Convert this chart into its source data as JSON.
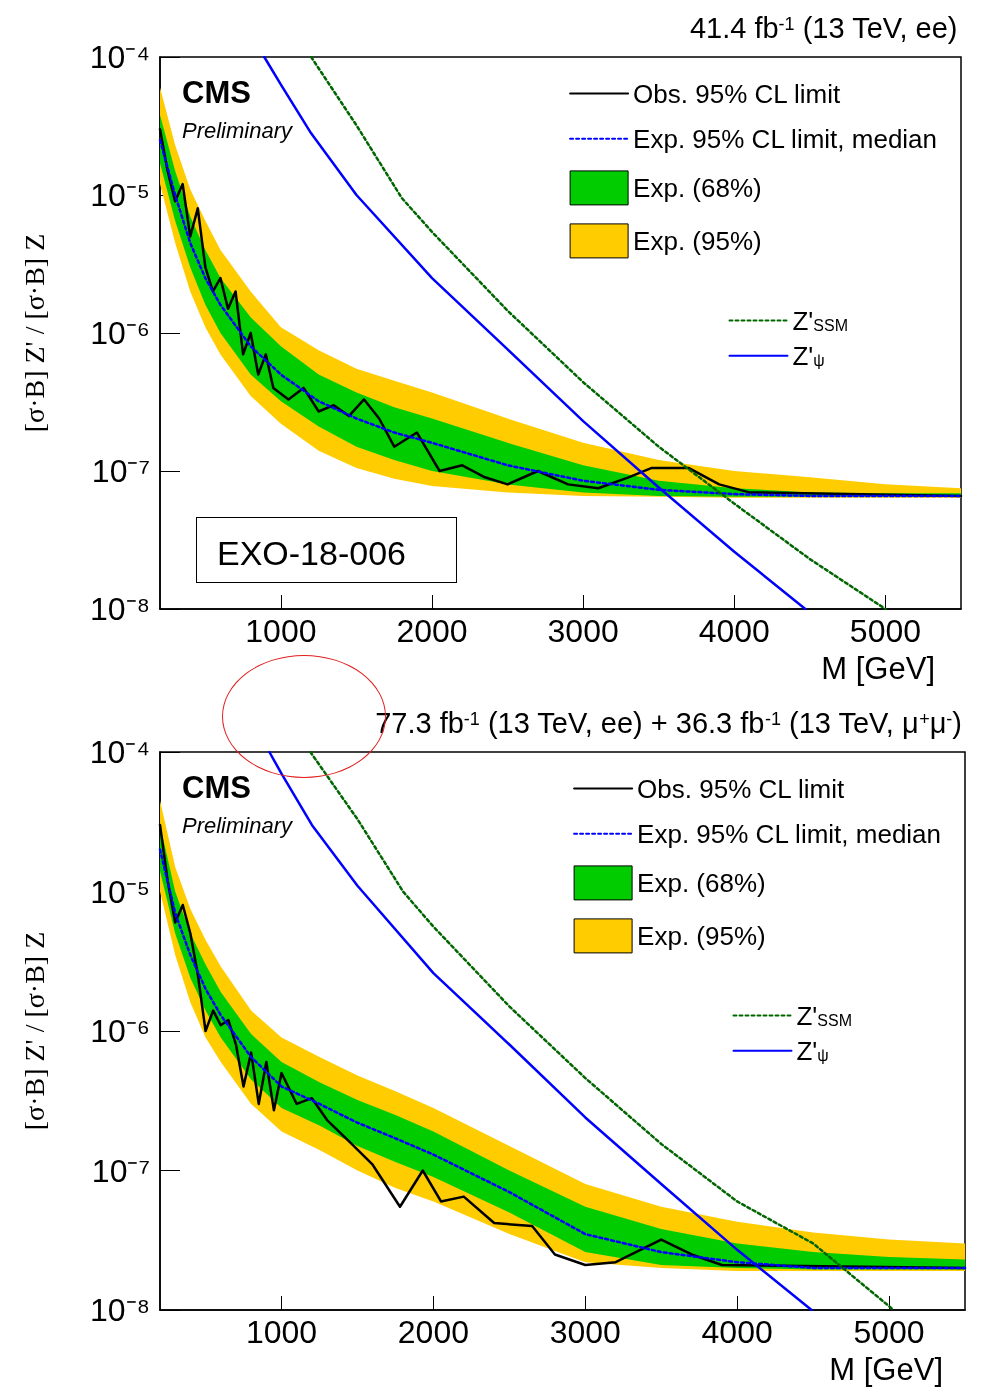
{
  "chart_data": [
    {
      "type": "line",
      "title": "41.4 fb$^{-1}$ (13 TeV, ee)",
      "xlabel": "M [GeV]",
      "ylabel": "[σ·B] Z' / [σ·B] Z",
      "annotations": [
        "CMS",
        "Preliminary",
        "EXO-18-006"
      ],
      "log": "y",
      "grid": false,
      "legend": "top right",
      "marker": "none",
      "xlim": [
        200,
        5500
      ],
      "xticks": [
        1000,
        2000,
        3000,
        4000,
        5000
      ],
      "ylim": [
        1e-08,
        0.0001
      ],
      "yticks": [
        {
          "value": 1e-08,
          "label": "10⁻⁸"
        },
        {
          "value": 1e-07,
          "label": "10⁻⁷"
        },
        {
          "value": 1e-06,
          "label": "10⁻⁶"
        },
        {
          "value": 1e-05,
          "label": "10⁻⁵"
        },
        {
          "value": 0.0001,
          "label": "10⁻⁴"
        }
      ],
      "series": [
        {
          "name": "Obs. 95% CL limit",
          "type": "line",
          "color": "#000000",
          "line_style": "solid",
          "x": [
            200,
            250,
            300,
            350,
            400,
            450,
            500,
            550,
            600,
            650,
            700,
            750,
            800,
            850,
            900,
            950,
            1050,
            1150,
            1250,
            1350,
            1450,
            1550,
            1650,
            1750,
            1900,
            2050,
            2200,
            2350,
            2500,
            2700,
            2900,
            3100,
            3300,
            3450,
            3700,
            3900,
            4100,
            5500
          ],
          "values": [
            3e-05,
            1.5e-05,
            9e-06,
            1.2e-05,
            5e-06,
            8e-06,
            3e-06,
            2e-06,
            2.5e-06,
            1.5e-06,
            2e-06,
            7e-07,
            1e-06,
            5e-07,
            7e-07,
            4e-07,
            3.3e-07,
            4e-07,
            2.7e-07,
            3e-07,
            2.5e-07,
            3.3e-07,
            2.4e-07,
            1.5e-07,
            1.9e-07,
            1e-07,
            1.1e-07,
            9e-08,
            8e-08,
            1e-07,
            8e-08,
            7.5e-08,
            9e-08,
            1.05e-07,
            1.05e-07,
            8e-08,
            7e-08,
            6.6e-08
          ]
        },
        {
          "name": "Exp. 95% CL limit, median",
          "type": "line",
          "color": "#0000ff",
          "line_style": "dotted",
          "x": [
            200,
            300,
            400,
            500,
            600,
            800,
            1000,
            1250,
            1500,
            1750,
            2000,
            2500,
            3000,
            3500,
            4000,
            4500,
            5000,
            5500
          ],
          "values": [
            2.5e-05,
            1e-05,
            4.5e-06,
            2.5e-06,
            1.6e-06,
            8e-07,
            5e-07,
            3.2e-07,
            2.4e-07,
            1.9e-07,
            1.6e-07,
            1.1e-07,
            8.5e-08,
            7.3e-08,
            6.8e-08,
            6.6e-08,
            6.6e-08,
            6.6e-08
          ]
        },
        {
          "name": "Exp. (68%)",
          "type": "line",
          "color": "#00cc00",
          "line_style": "solid",
          "x": [
            200,
            300,
            400,
            500,
            600,
            800,
            1000,
            1250,
            1500,
            1750,
            2000,
            2500,
            3000,
            3500,
            4000,
            4500,
            5000,
            5500
          ],
          "values": [
            null,
            null,
            null,
            null,
            null,
            null,
            null,
            null,
            null,
            null,
            null,
            null,
            null,
            null,
            null,
            null,
            null,
            null
          ],
          "lower": [
            1.7e-05,
            6.5e-06,
            3e-06,
            1.6e-06,
            1e-06,
            5e-07,
            3.2e-07,
            2.1e-07,
            1.5e-07,
            1.2e-07,
            1e-07,
            8e-08,
            7e-08,
            6.6e-08,
            6.5e-08,
            6.5e-08,
            6.5e-08,
            6.5e-08
          ],
          "upper": [
            3.8e-05,
            1.5e-05,
            7e-06,
            4e-06,
            2.5e-06,
            1.3e-06,
            8e-07,
            5e-07,
            3.7e-07,
            2.9e-07,
            2.4e-07,
            1.6e-07,
            1.1e-07,
            8.5e-08,
            7.5e-08,
            7e-08,
            6.9e-08,
            6.9e-08
          ]
        },
        {
          "name": "Exp. (95%)",
          "type": "line",
          "color": "#ffcc00",
          "line_style": "solid",
          "x": [
            200,
            300,
            400,
            500,
            600,
            800,
            1000,
            1250,
            1500,
            1750,
            2000,
            2500,
            3000,
            3500,
            4000,
            4500,
            5000,
            5500
          ],
          "values": [
            null,
            null,
            null,
            null,
            null,
            null,
            null,
            null,
            null,
            null,
            null,
            null,
            null,
            null,
            null,
            null,
            null,
            null
          ],
          "lower": [
            1.2e-05,
            4.5e-06,
            2e-06,
            1.1e-06,
            7e-07,
            3.5e-07,
            2.2e-07,
            1.4e-07,
            1.05e-07,
            8.8e-08,
            7.8e-08,
            7e-08,
            6.6e-08,
            6.5e-08,
            6.4e-08,
            6.4e-08,
            6.4e-08,
            6.4e-08
          ],
          "upper": [
            6e-05,
            2.3e-05,
            1.1e-05,
            6.5e-06,
            4e-06,
            2e-06,
            1.1e-06,
            7.5e-07,
            5.5e-07,
            4.5e-07,
            3.7e-07,
            2.4e-07,
            1.6e-07,
            1.2e-07,
            1e-07,
            9e-08,
            8e-08,
            7.5e-08
          ]
        },
        {
          "name": "Z'$_{SSM}$",
          "type": "line",
          "color": "#006600",
          "line_style": "dotted",
          "x": [
            1200,
            1500,
            1800,
            2000,
            2500,
            3000,
            3500,
            4000,
            4500,
            5000
          ],
          "values": [
            0.0001,
            3.2e-05,
            9.5e-06,
            5.4e-06,
            1.45e-06,
            4.4e-07,
            1.5e-07,
            5.8e-08,
            2.3e-08,
            1e-08
          ]
        },
        {
          "name": "Z'$_{ψ}$",
          "type": "line",
          "color": "#0000ff",
          "line_style": "solid",
          "x": [
            890,
            1000,
            1200,
            1500,
            2000,
            2500,
            3000,
            3500,
            4000,
            4470
          ],
          "values": [
            0.0001,
            6.3e-05,
            2.8e-05,
            1e-05,
            2.5e-06,
            7.6e-07,
            2.3e-07,
            7.6e-08,
            2.6e-08,
            1e-08
          ]
        }
      ]
    },
    {
      "type": "line",
      "title": "77.3 fb$^{-1}$ (13 TeV, ee) + 36.3 fb$^{-1}$ (13 TeV, μ$^{+}$μ$^{-}$)",
      "xlabel": "M [GeV]",
      "ylabel": "[σ·B] Z' / [σ·B] Z",
      "annotations": [
        "CMS",
        "Preliminary"
      ],
      "log": "y",
      "grid": false,
      "legend": "top right",
      "marker": "none",
      "xlim": [
        200,
        5500
      ],
      "xticks": [
        1000,
        2000,
        3000,
        4000,
        5000
      ],
      "ylim": [
        1e-08,
        0.0001
      ],
      "yticks": [
        {
          "value": 1e-08,
          "label": "10⁻⁸"
        },
        {
          "value": 1e-07,
          "label": "10⁻⁷"
        },
        {
          "value": 1e-06,
          "label": "10⁻⁶"
        },
        {
          "value": 1e-05,
          "label": "10⁻⁵"
        },
        {
          "value": 0.0001,
          "label": "10⁻⁴"
        }
      ],
      "series": [
        {
          "name": "Obs. 95% CL limit",
          "type": "line",
          "color": "#000000",
          "line_style": "solid",
          "x": [
            200,
            250,
            300,
            350,
            400,
            450,
            500,
            550,
            600,
            650,
            700,
            750,
            800,
            850,
            900,
            950,
            1000,
            1100,
            1200,
            1300,
            1450,
            1600,
            1780,
            1930,
            2050,
            2200,
            2400,
            2650,
            2800,
            3000,
            3200,
            3500,
            3700,
            3900,
            5500
          ],
          "values": [
            3e-05,
            1.2e-05,
            6e-06,
            8e-06,
            5e-06,
            2.5e-06,
            1e-06,
            1.4e-06,
            1.1e-06,
            1.2e-06,
            8e-07,
            4e-07,
            7e-07,
            3e-07,
            6e-07,
            2.7e-07,
            5e-07,
            3e-07,
            3.3e-07,
            2.3e-07,
            1.6e-07,
            1.1e-07,
            5.5e-08,
            1e-07,
            6e-08,
            6.5e-08,
            4.2e-08,
            4e-08,
            2.5e-08,
            2.1e-08,
            2.2e-08,
            3.2e-08,
            2.5e-08,
            2.1e-08,
            2e-08
          ]
        },
        {
          "name": "Exp. 95% CL limit, median",
          "type": "line",
          "color": "#0000ff",
          "line_style": "dotted",
          "x": [
            200,
            300,
            400,
            500,
            600,
            800,
            1000,
            1250,
            1500,
            1750,
            2000,
            2500,
            3000,
            3500,
            4000,
            4500,
            5000,
            5500
          ],
          "values": [
            2e-05,
            7e-06,
            3.5e-06,
            2e-06,
            1.3e-06,
            6.5e-07,
            4e-07,
            3e-07,
            2.2e-07,
            1.7e-07,
            1.3e-07,
            7e-08,
            3.5e-08,
            2.6e-08,
            2.2e-08,
            2e-08,
            2e-08,
            2e-08
          ]
        },
        {
          "name": "Exp. (68%)",
          "type": "line",
          "color": "#00cc00",
          "line_style": "solid",
          "x": [
            200,
            300,
            400,
            500,
            600,
            800,
            1000,
            1250,
            1500,
            1750,
            2000,
            2500,
            3000,
            3500,
            4000,
            4500,
            5000,
            5500
          ],
          "values": [
            null,
            null,
            null,
            null,
            null,
            null,
            null,
            null,
            null,
            null,
            null,
            null,
            null,
            null,
            null,
            null,
            null,
            null
          ],
          "lower": [
            1.4e-05,
            5e-06,
            2.4e-06,
            1.4e-06,
            9e-07,
            4.5e-07,
            2.8e-07,
            2.1e-07,
            1.5e-07,
            1.15e-07,
            9e-08,
            5e-08,
            2.6e-08,
            2.1e-08,
            2e-08,
            1.95e-08,
            1.95e-08,
            1.95e-08
          ],
          "upper": [
            3e-05,
            1e-05,
            5e-06,
            3e-06,
            1.9e-06,
            9.5e-07,
            6e-07,
            4.3e-07,
            3.2e-07,
            2.5e-07,
            1.9e-07,
            1e-07,
            5.5e-08,
            3.8e-08,
            3e-08,
            2.6e-08,
            2.4e-08,
            2.3e-08
          ]
        },
        {
          "name": "Exp. (95%)",
          "type": "line",
          "color": "#ffcc00",
          "line_style": "solid",
          "x": [
            200,
            300,
            400,
            500,
            600,
            800,
            1000,
            1250,
            1500,
            1750,
            2000,
            2500,
            3000,
            3500,
            4000,
            4500,
            5000,
            5500
          ],
          "values": [
            null,
            null,
            null,
            null,
            null,
            null,
            null,
            null,
            null,
            null,
            null,
            null,
            null,
            null,
            null,
            null,
            null,
            null
          ],
          "lower": [
            1e-05,
            3.5e-06,
            1.6e-06,
            9e-07,
            6e-07,
            3e-07,
            1.9e-07,
            1.4e-07,
            1e-07,
            7.5e-08,
            6e-08,
            3.5e-08,
            2.2e-08,
            2e-08,
            1.9e-08,
            1.9e-08,
            1.9e-08,
            1.9e-08
          ],
          "upper": [
            4.5e-05,
            1.5e-05,
            7.5e-06,
            4.5e-06,
            2.9e-06,
            1.4e-06,
            9e-07,
            6.5e-07,
            4.8e-07,
            3.7e-07,
            2.8e-07,
            1.5e-07,
            8e-08,
            5.5e-08,
            4.3e-08,
            3.6e-08,
            3.2e-08,
            3e-08
          ]
        },
        {
          "name": "Z'$_{SSM}$",
          "type": "line",
          "color": "#006600",
          "line_style": "dotted",
          "x": [
            1190,
            1500,
            1800,
            2000,
            2500,
            3000,
            3500,
            4000,
            4500,
            5030
          ],
          "values": [
            0.0001,
            3.3e-05,
            1e-05,
            5.6e-06,
            1.5e-06,
            4.6e-07,
            1.55e-07,
            6e-08,
            3e-08,
            1e-08
          ]
        },
        {
          "name": "Z'$_{ψ}$",
          "type": "line",
          "color": "#0000ff",
          "line_style": "solid",
          "x": [
            920,
            1000,
            1200,
            1500,
            2000,
            2500,
            3000,
            3500,
            4000,
            4490
          ],
          "values": [
            0.0001,
            7e-05,
            3e-05,
            1.1e-05,
            2.6e-06,
            8e-07,
            2.4e-07,
            8e-08,
            2.7e-08,
            1e-08
          ]
        }
      ]
    }
  ]
}
